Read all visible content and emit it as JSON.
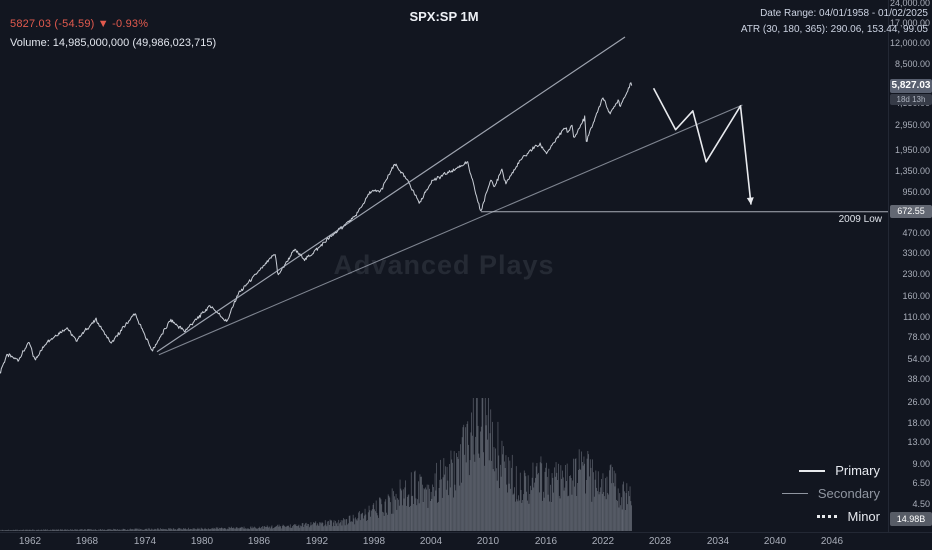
{
  "header": {
    "quote_line": "5827.03 (-54.59) ▼ -0.93%",
    "volume_line": "Volume: 14,985,000,000 (49,986,023,715)",
    "title": "SPX:SP 1M",
    "date_range": "Date Range: 04/01/1958 - 01/02/2025",
    "atr_line": "ATR (30, 180, 365): 290.06, 153.44, 99.05"
  },
  "watermark": "Advanced Plays",
  "badges": {
    "last_price": "5,827.03",
    "countdown": "18d 13h",
    "level_2009": "672.55",
    "volume": "14.98B"
  },
  "legend": {
    "items": [
      {
        "label": "Primary"
      },
      {
        "label": "Secondary"
      },
      {
        "label": "Minor"
      }
    ]
  },
  "colors": {
    "quote_red": "#e25a4e",
    "price_line": "#d4d8e0",
    "trend_line": "#b6bcc8",
    "trend_line_dim": "#9aa0ac",
    "projection": "#e8eaee",
    "level_line": "#c4c8d2",
    "volume_bar": "#a8aeba",
    "background": "#121620",
    "axis_text": "#a9aeb9"
  },
  "chart_data": {
    "type": "line",
    "title": "SPX:SP 1M",
    "symbol": "SPX:SP",
    "interval": "1M",
    "y_scale": "log",
    "last_price": 5827.03,
    "change": -54.59,
    "change_pct": -0.93,
    "x_tick_years": [
      1962,
      1968,
      1974,
      1980,
      1986,
      1992,
      1998,
      2004,
      2010,
      2016,
      2022,
      2028,
      2034,
      2040,
      2046
    ],
    "y_tick_prices": [
      24000,
      17000,
      12000,
      8500,
      4350,
      2950,
      1950,
      1350,
      950,
      470,
      330,
      230,
      160,
      110,
      78,
      54,
      38,
      26,
      18,
      13,
      9,
      6.5,
      4.5
    ],
    "series": [
      {
        "name": "SPX:SP close",
        "points": [
          [
            1958.75,
            41
          ],
          [
            1959.6,
            58
          ],
          [
            1960.8,
            53
          ],
          [
            1961.9,
            72
          ],
          [
            1962.5,
            53
          ],
          [
            1963.8,
            73
          ],
          [
            1965.9,
            92
          ],
          [
            1966.8,
            74
          ],
          [
            1968.9,
            106
          ],
          [
            1970.5,
            70
          ],
          [
            1972.95,
            118
          ],
          [
            1974.8,
            62
          ],
          [
            1976.7,
            105
          ],
          [
            1978.2,
            87
          ],
          [
            1980.9,
            135
          ],
          [
            1982.6,
            102
          ],
          [
            1983.8,
            165
          ],
          [
            1987.7,
            329
          ],
          [
            1987.95,
            224
          ],
          [
            1989.7,
            352
          ],
          [
            1990.8,
            296
          ],
          [
            1993.9,
            465
          ],
          [
            1996.0,
            615
          ],
          [
            1997.7,
            950
          ],
          [
            1998.7,
            958
          ],
          [
            2000.2,
            1522
          ],
          [
            2001.7,
            1100
          ],
          [
            2002.8,
            777
          ],
          [
            2004.0,
            1130
          ],
          [
            2007.8,
            1562
          ],
          [
            2009.2,
            672.55
          ],
          [
            2010.3,
            1200
          ],
          [
            2010.6,
            1030
          ],
          [
            2011.4,
            1360
          ],
          [
            2011.8,
            1100
          ],
          [
            2013.4,
            1630
          ],
          [
            2014.7,
            2010
          ],
          [
            2015.4,
            2120
          ],
          [
            2016.1,
            1830
          ],
          [
            2018.05,
            2870
          ],
          [
            2018.3,
            2600
          ],
          [
            2018.75,
            2930
          ],
          [
            2018.95,
            2350
          ],
          [
            2020.1,
            3380
          ],
          [
            2020.25,
            2237
          ],
          [
            2021.99,
            4790
          ],
          [
            2022.75,
            3580
          ],
          [
            2023.6,
            4600
          ],
          [
            2023.8,
            4120
          ],
          [
            2024.95,
            6090
          ],
          [
            2025.0,
            5827.03
          ]
        ]
      }
    ],
    "volume_profile": [
      [
        1958.75,
        0.008
      ],
      [
        1970,
        0.012
      ],
      [
        1980,
        0.02
      ],
      [
        1986,
        0.03
      ],
      [
        1990,
        0.045
      ],
      [
        1994,
        0.07
      ],
      [
        1996,
        0.1
      ],
      [
        1998,
        0.17
      ],
      [
        2000,
        0.26
      ],
      [
        2001.7,
        0.36
      ],
      [
        2002.8,
        0.4
      ],
      [
        2003.5,
        0.34
      ],
      [
        2005,
        0.42
      ],
      [
        2006.5,
        0.5
      ],
      [
        2007.8,
        0.72
      ],
      [
        2008.8,
        1.0
      ],
      [
        2009.3,
        0.9
      ],
      [
        2010.4,
        0.72
      ],
      [
        2011.6,
        0.6
      ],
      [
        2012.5,
        0.45
      ],
      [
        2014,
        0.4
      ],
      [
        2015.7,
        0.45
      ],
      [
        2016.5,
        0.42
      ],
      [
        2018,
        0.38
      ],
      [
        2018.9,
        0.45
      ],
      [
        2020.2,
        0.52
      ],
      [
        2020.8,
        0.42
      ],
      [
        2022,
        0.4
      ],
      [
        2022.8,
        0.44
      ],
      [
        2023.5,
        0.33
      ],
      [
        2024.5,
        0.3
      ],
      [
        2025.0,
        0.28
      ]
    ],
    "annotations": {
      "level_2009_low": {
        "label": "2009 Low",
        "price": 672.55,
        "from_year": 2009.2
      },
      "primary_trendline": {
        "points": [
          [
            1975.3,
            61
          ],
          [
            2024.3,
            13400
          ]
        ]
      },
      "secondary_trendline": {
        "points": [
          [
            1975.5,
            58
          ],
          [
            2036.6,
            4180
          ]
        ]
      },
      "projection_path": {
        "points": [
          [
            2027.3,
            5570
          ],
          [
            2029.6,
            2740
          ],
          [
            2031.4,
            3780
          ],
          [
            2032.8,
            1580
          ],
          [
            2036.4,
            4120
          ],
          [
            2037.5,
            760
          ]
        ]
      }
    }
  }
}
